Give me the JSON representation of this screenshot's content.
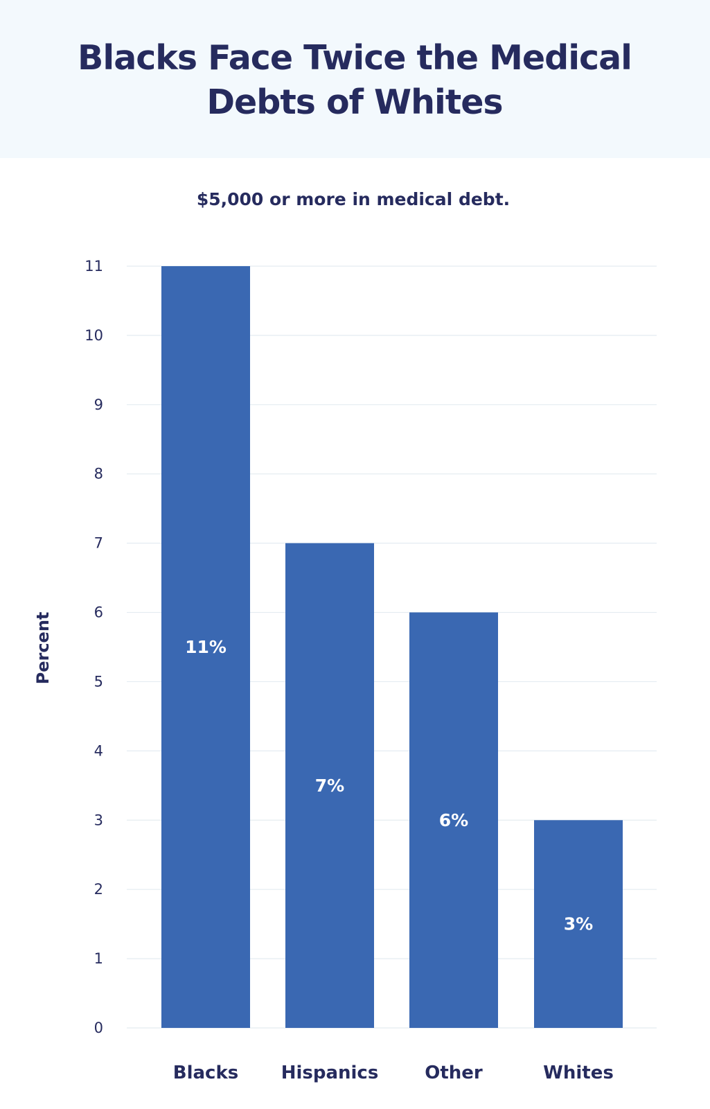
{
  "title": "Blacks Face Twice the Medical Debts of Whites",
  "colors": {
    "header_bg": "#f3f9fd",
    "bar": "#3a68b2",
    "text": "#262b5e",
    "grid": "#e4ecf1",
    "bar_label": "#ffffff"
  },
  "chart_data": {
    "type": "bar",
    "title": "Blacks Face Twice the Medical Debts of Whites",
    "subtitle": "$5,000 or more in medical debt.",
    "xlabel": "",
    "ylabel": "Percent",
    "categories": [
      "Blacks",
      "Hispanics",
      "Other",
      "Whites"
    ],
    "values": [
      11,
      7,
      6,
      3
    ],
    "data_labels": [
      "11%",
      "7%",
      "6%",
      "3%"
    ],
    "ylim": [
      0,
      11
    ],
    "yticks": [
      0,
      1,
      2,
      3,
      4,
      5,
      6,
      7,
      8,
      9,
      10,
      11
    ],
    "grid": true,
    "legend": "none"
  }
}
